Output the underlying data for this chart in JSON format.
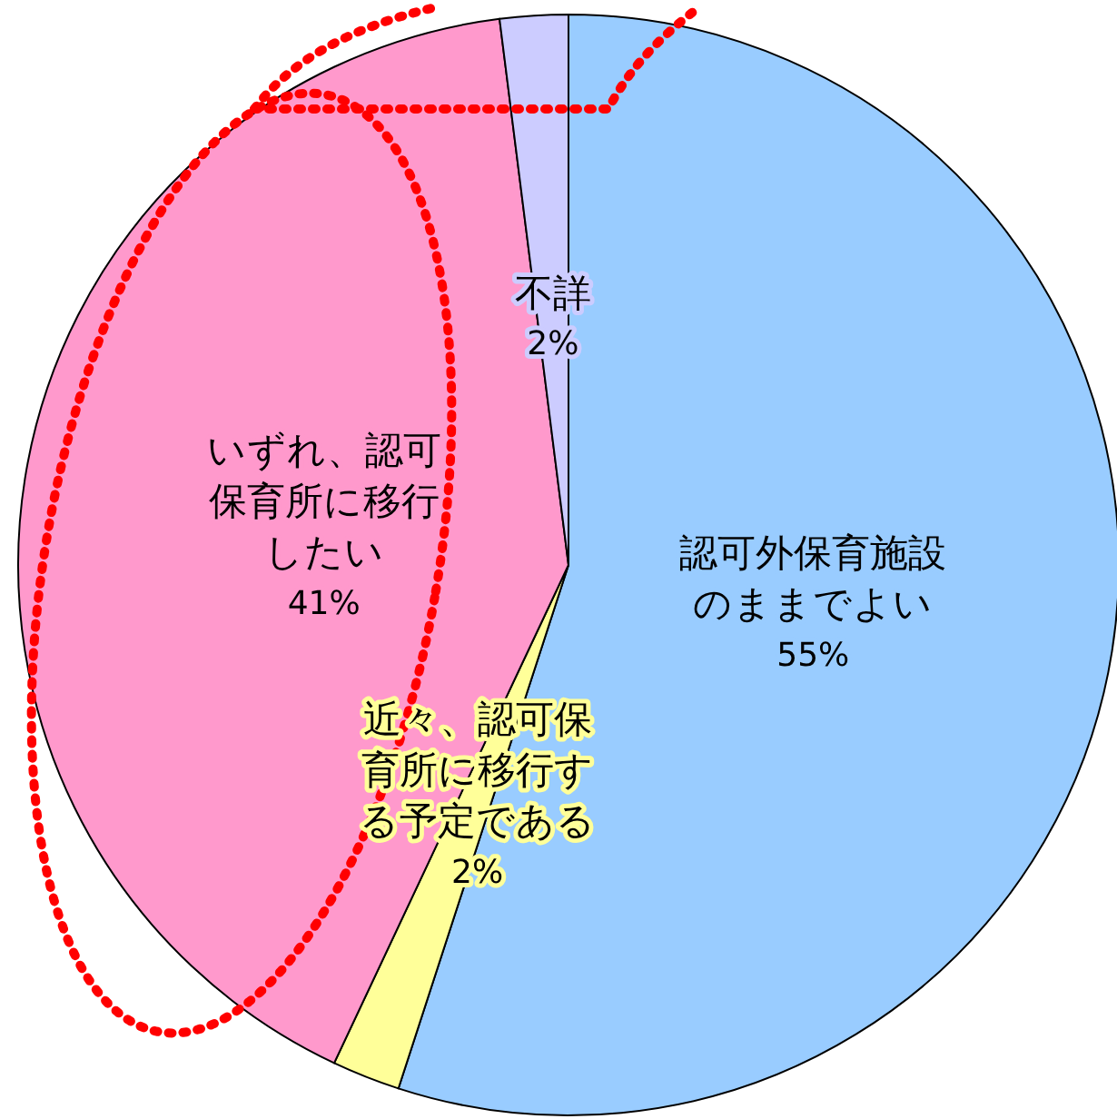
{
  "chart_data": {
    "type": "pie",
    "categories": [
      "認可外保育施設のままでよい",
      "近々、認可保育所に移行する予定である",
      "いずれ、認可保育所に移行したい",
      "不詳"
    ],
    "values": [
      55,
      2,
      41,
      2
    ],
    "colors": [
      "#99ccff",
      "#ffff99",
      "#ff99cc",
      "#ccccff"
    ],
    "value_labels": [
      "55%",
      "2%",
      "41%",
      "2%"
    ]
  }
}
